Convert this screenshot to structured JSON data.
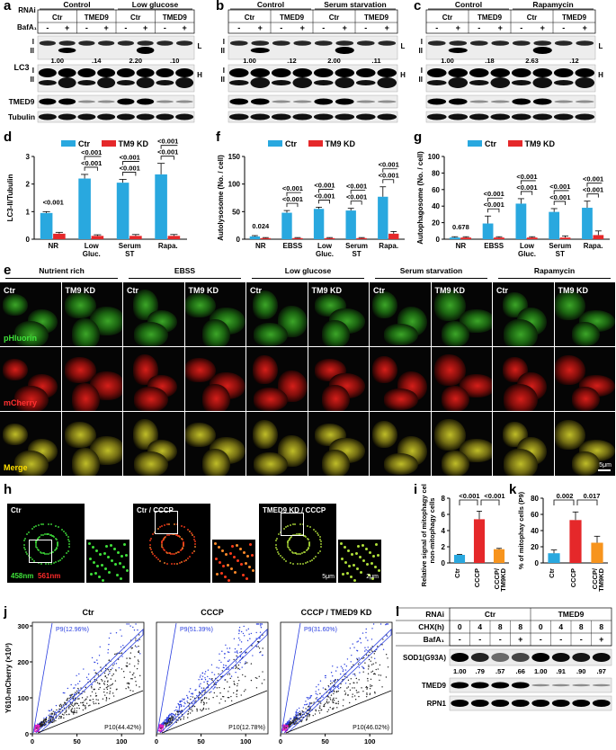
{
  "panels": {
    "a": "a",
    "b": "b",
    "c": "c",
    "d": "d",
    "e": "e",
    "f": "f",
    "g": "g",
    "h": "h",
    "i": "i",
    "j": "j",
    "k": "k",
    "l": "l"
  },
  "blots_top": [
    {
      "id": "a",
      "groups": [
        "Control",
        "Low glucose"
      ],
      "rnai_label": "RNAi",
      "baf_label": "BafA₁",
      "rnai": [
        "Ctr",
        "TMED9",
        "Ctr",
        "TMED9"
      ],
      "baf": [
        "-",
        "+",
        "-",
        "+",
        "-",
        "+",
        "-",
        "+"
      ],
      "ratios": [
        "1.00",
        ".14",
        "2.20",
        ".10"
      ],
      "rows": [
        "LC3",
        "TMED9",
        "Tubulin"
      ]
    },
    {
      "id": "b",
      "groups": [
        "Control",
        "Serum starvation"
      ],
      "rnai": [
        "Ctr",
        "TMED9",
        "Ctr",
        "TMED9"
      ],
      "baf": [
        "-",
        "+",
        "-",
        "+",
        "-",
        "+",
        "-",
        "+"
      ],
      "ratios": [
        "1.00",
        ".12",
        "2.00",
        ".11"
      ]
    },
    {
      "id": "c",
      "groups": [
        "Control",
        "Rapamycin"
      ],
      "rnai": [
        "Ctr",
        "TMED9",
        "Ctr",
        "TMED9"
      ],
      "baf": [
        "-",
        "+",
        "-",
        "+",
        "-",
        "+",
        "-",
        "+"
      ],
      "ratios": [
        "1.00",
        ".18",
        "2.63",
        ".12"
      ]
    }
  ],
  "blot_marks": {
    "I": "I",
    "II": "II",
    "L": "L",
    "H": "H"
  },
  "charts": {
    "d": {
      "chart_data": {
        "type": "bar",
        "categories": [
          "NR",
          "Low\nGluc.",
          "Serum\nST",
          "Rapa."
        ],
        "series": [
          {
            "name": "Ctr",
            "color": "#29a8df",
            "values": [
              0.95,
              2.2,
              2.05,
              2.35
            ],
            "err": [
              0.05,
              0.15,
              0.12,
              0.4
            ]
          },
          {
            "name": "TM9 KD",
            "color": "#e5282a",
            "values": [
              0.2,
              0.12,
              0.12,
              0.12
            ],
            "err": [
              0.05,
              0.04,
              0.05,
              0.05
            ]
          }
        ],
        "ylabel": "LC3-II/Tubulin",
        "ylim": [
          0,
          3
        ],
        "yticks": [
          0,
          1,
          2,
          3
        ],
        "pvals": [
          "<0.001",
          "<0.001",
          "<0.001",
          "<0.001"
        ],
        "pvals2": [
          "",
          "<0.001",
          "<0.001",
          "<0.001"
        ],
        "sub_labels": [
          "",
          "<0.001",
          "<0.001",
          "<0.001"
        ]
      }
    },
    "f": {
      "chart_data": {
        "type": "bar",
        "categories": [
          "NR",
          "EBSS",
          "Low\nGluc.",
          "Serum\nST",
          "Rapa."
        ],
        "series": [
          {
            "name": "Ctr",
            "color": "#29a8df",
            "values": [
              5,
              48,
              55,
              52,
              77
            ],
            "err": [
              1.5,
              4,
              3,
              4,
              18
            ]
          },
          {
            "name": "TM9 KD",
            "color": "#e5282a",
            "values": [
              2,
              2,
              2,
              2,
              10
            ],
            "err": [
              1,
              1,
              1,
              1,
              4
            ]
          }
        ],
        "ylabel": "Autolysosome (No. / cell)",
        "ylim": [
          0,
          150
        ],
        "yticks": [
          0,
          50,
          100,
          150
        ],
        "pvals": [
          "0.024",
          "<0.001",
          "<0.001",
          "<0.001",
          "<0.001"
        ],
        "pvals2": [
          "",
          "<0.001",
          "<0.001",
          "<0.001",
          "<0.001"
        ]
      }
    },
    "g": {
      "chart_data": {
        "type": "bar",
        "categories": [
          "NR",
          "EBSS",
          "Low\nGluc.",
          "Serum\nST",
          "Rapa."
        ],
        "series": [
          {
            "name": "Ctr",
            "color": "#29a8df",
            "values": [
              2,
              19,
              43,
              33,
              38
            ],
            "err": [
              1,
              9,
              6,
              4,
              8
            ]
          },
          {
            "name": "TM9 KD",
            "color": "#e5282a",
            "values": [
              2,
              2,
              2,
              2,
              5
            ],
            "err": [
              1,
              1,
              1,
              2,
              5
            ]
          }
        ],
        "ylabel": "Autophagosome (No. / cell)",
        "ylim": [
          0,
          100
        ],
        "yticks": [
          0,
          20,
          40,
          60,
          80,
          100
        ],
        "pvals": [
          "0.678",
          "<0.001",
          "<0.001",
          "<0.001",
          "<0.001"
        ],
        "pvals2": [
          "",
          "<0.001",
          "<0.001",
          "<0.001",
          "<0.001"
        ]
      }
    },
    "i": {
      "chart_data": {
        "type": "bar",
        "categories": [
          "Ctr",
          "CCCP",
          "CCCP/\nTM9KD"
        ],
        "series": [
          {
            "name": "",
            "colors": [
              "#29a8df",
              "#e5282a",
              "#f7941d"
            ],
            "values": [
              1.0,
              5.4,
              1.7
            ],
            "err": [
              0.05,
              1.0,
              0.1
            ]
          }
        ],
        "ylabel": "Relative signal of mitophagy cells / non-mitophagy cells",
        "ylim": [
          0,
          8
        ],
        "yticks": [
          0,
          2,
          4,
          6,
          8
        ],
        "pvals": [
          "<0.001",
          "<0.001"
        ]
      }
    },
    "k": {
      "chart_data": {
        "type": "bar",
        "categories": [
          "Ctr",
          "CCCP",
          "CCCP/\nTM9KD"
        ],
        "series": [
          {
            "name": "",
            "colors": [
              "#29a8df",
              "#e5282a",
              "#f7941d"
            ],
            "values": [
              12,
              53,
              25
            ],
            "err": [
              4,
              10,
              8
            ]
          }
        ],
        "ylabel": "% of mitophay cells (P9)",
        "ylim": [
          0,
          80
        ],
        "yticks": [
          0,
          20,
          40,
          60,
          80
        ],
        "pvals": [
          "0.002",
          "0.017"
        ]
      }
    }
  },
  "legend": {
    "ctr": "Ctr",
    "kd": "TM9 KD"
  },
  "panel_e": {
    "headers": [
      "Nutrient rich",
      "EBSS",
      "Low glucose",
      "Serum starvation",
      "Rapamycin"
    ],
    "col_labels": [
      "Ctr",
      "TM9 KD"
    ],
    "row_labels": [
      "pHluorin",
      "mCherry",
      "Merge"
    ],
    "scale": "5μm"
  },
  "panel_h": {
    "labels": [
      "Ctr",
      "Ctr / CCCP",
      "TMED9 KD / CCCP"
    ],
    "channel1": "458nm",
    "channel2": "561nm",
    "scale1": "5μm",
    "scale2": "2μm"
  },
  "panel_j": {
    "titles": [
      "Ctr",
      "CCCP",
      "CCCP / TMED9 KD"
    ],
    "p9": [
      "P9(12.96%)",
      "P9(51.39%)",
      "P9(31.60%)"
    ],
    "p10": [
      "P10(44.42%)",
      "P10(12.78%)",
      "P10(46.02%)"
    ],
    "ylabel": "Y610-mCherry (×10³)",
    "xlabel": "V610 (×10³)",
    "yticks": [
      "0",
      "100",
      "200",
      "300"
    ],
    "xticks": [
      "0",
      "50",
      "100"
    ]
  },
  "panel_l": {
    "rnai_label": "RNAi",
    "chx_label": "CHX(h)",
    "baf_label": "BafA₁",
    "groups": [
      "Ctr",
      "TMED9"
    ],
    "chx": [
      "0",
      "4",
      "8",
      "8",
      "0",
      "4",
      "8",
      "8"
    ],
    "baf": [
      "-",
      "-",
      "-",
      "+",
      "-",
      "-",
      "-",
      "+"
    ],
    "rows": [
      "SOD1(G93A)",
      "TMED9",
      "RPN1"
    ],
    "ratios": [
      "1.00",
      ".79",
      ".57",
      ".66",
      "1.00",
      ".91",
      ".90",
      ".97"
    ]
  }
}
